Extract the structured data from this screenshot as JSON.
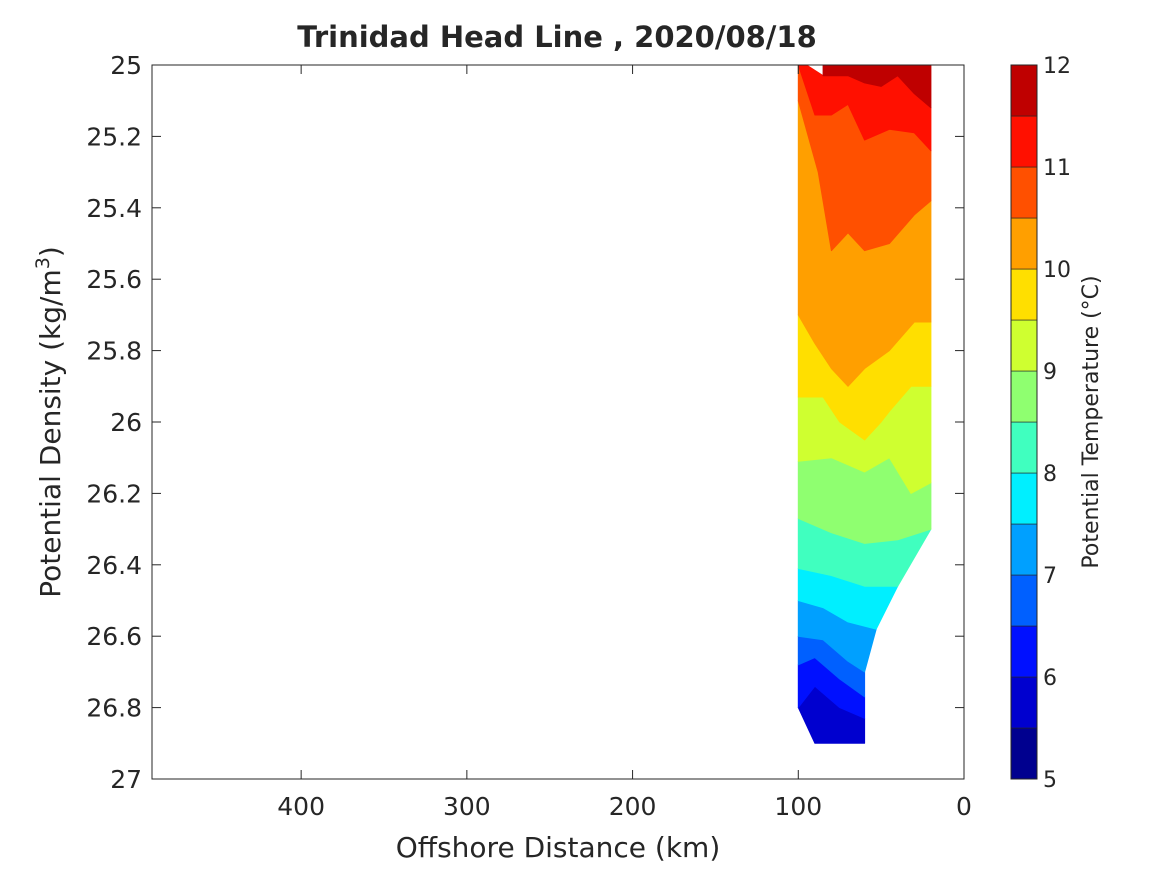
{
  "chart_data": {
    "type": "heatmap",
    "title": "Trinidad Head Line , 2020/08/18",
    "xlabel": "Offshore Distance (km)",
    "ylabel": "Potential Density (kg/m",
    "ylabel_sup": "3",
    "ylabel_end": ")",
    "xlim": [
      490,
      0
    ],
    "ylim": [
      27,
      25
    ],
    "x_ticks": [
      400,
      300,
      200,
      100,
      0
    ],
    "x_tick_labels": [
      "400",
      "300",
      "200",
      "100",
      "0"
    ],
    "y_ticks": [
      25,
      25.2,
      25.4,
      25.6,
      25.8,
      26,
      26.2,
      26.4,
      26.6,
      26.8,
      27
    ],
    "y_tick_labels": [
      "25",
      "25.2",
      "25.4",
      "25.6",
      "25.8",
      "26",
      "26.2",
      "26.4",
      "26.6",
      "26.8",
      "27"
    ],
    "colorbar": {
      "label": "Potential Temperature (°C)",
      "levels": [
        5,
        5.5,
        6,
        6.5,
        7,
        7.5,
        8,
        8.5,
        9,
        9.5,
        10,
        10.5,
        11,
        11.5,
        12
      ],
      "colors": [
        "#00008f",
        "#0000cf",
        "#0010ff",
        "#0060ff",
        "#00a0ff",
        "#00efff",
        "#40ffbf",
        "#8fff70",
        "#cfff30",
        "#ffdf00",
        "#ff9f00",
        "#ff5000",
        "#ff1000",
        "#bf0000"
      ],
      "tick_values": [
        5,
        6,
        7,
        8,
        9,
        10,
        11,
        12
      ],
      "tick_labels": [
        "5",
        "6",
        "7",
        "8",
        "9",
        "10",
        "11",
        "12"
      ]
    },
    "grid": false,
    "legend": "colorbar-right",
    "bands": [
      {
        "lo": 5.5,
        "hi": 6.0,
        "polygon": [
          [
            100,
            26.8
          ],
          [
            90,
            26.9
          ],
          [
            60,
            26.9
          ],
          [
            60,
            26.83
          ],
          [
            75,
            26.8
          ],
          [
            90,
            26.74
          ],
          [
            100,
            26.8
          ]
        ]
      },
      {
        "lo": 6.0,
        "hi": 6.5,
        "polygon": [
          [
            100,
            26.8
          ],
          [
            90,
            26.74
          ],
          [
            75,
            26.8
          ],
          [
            60,
            26.83
          ],
          [
            60,
            26.77
          ],
          [
            75,
            26.72
          ],
          [
            90,
            26.66
          ],
          [
            100,
            26.68
          ]
        ]
      },
      {
        "lo": 6.5,
        "hi": 7.0,
        "polygon": [
          [
            100,
            26.68
          ],
          [
            90,
            26.66
          ],
          [
            75,
            26.72
          ],
          [
            60,
            26.77
          ],
          [
            60,
            26.7
          ],
          [
            70,
            26.67
          ],
          [
            85,
            26.61
          ],
          [
            100,
            26.6
          ]
        ]
      },
      {
        "lo": 7.0,
        "hi": 7.5,
        "polygon": [
          [
            100,
            26.6
          ],
          [
            85,
            26.61
          ],
          [
            70,
            26.67
          ],
          [
            60,
            26.7
          ],
          [
            53,
            26.58
          ],
          [
            70,
            26.56
          ],
          [
            85,
            26.52
          ],
          [
            100,
            26.5
          ]
        ]
      },
      {
        "lo": 7.5,
        "hi": 8.0,
        "polygon": [
          [
            100,
            26.5
          ],
          [
            85,
            26.52
          ],
          [
            70,
            26.56
          ],
          [
            53,
            26.58
          ],
          [
            40,
            26.46
          ],
          [
            60,
            26.46
          ],
          [
            80,
            26.43
          ],
          [
            100,
            26.41
          ]
        ]
      },
      {
        "lo": 8.0,
        "hi": 8.5,
        "polygon": [
          [
            100,
            26.41
          ],
          [
            80,
            26.43
          ],
          [
            60,
            26.46
          ],
          [
            40,
            26.46
          ],
          [
            20,
            26.3
          ],
          [
            40,
            26.33
          ],
          [
            60,
            26.34
          ],
          [
            80,
            26.31
          ],
          [
            100,
            26.27
          ]
        ]
      },
      {
        "lo": 8.5,
        "hi": 9.0,
        "polygon": [
          [
            100,
            26.27
          ],
          [
            80,
            26.31
          ],
          [
            60,
            26.34
          ],
          [
            40,
            26.33
          ],
          [
            20,
            26.3
          ],
          [
            20,
            26.17
          ],
          [
            32,
            26.2
          ],
          [
            45,
            26.1
          ],
          [
            60,
            26.14
          ],
          [
            70,
            26.12
          ],
          [
            80,
            26.1
          ],
          [
            100,
            26.11
          ]
        ]
      },
      {
        "lo": 9.0,
        "hi": 9.5,
        "polygon": [
          [
            100,
            26.11
          ],
          [
            80,
            26.1
          ],
          [
            70,
            26.12
          ],
          [
            60,
            26.14
          ],
          [
            45,
            26.1
          ],
          [
            32,
            26.2
          ],
          [
            20,
            26.17
          ],
          [
            20,
            25.9
          ],
          [
            32,
            25.9
          ],
          [
            45,
            25.97
          ],
          [
            50,
            26.0
          ],
          [
            60,
            26.05
          ],
          [
            75,
            26.0
          ],
          [
            85,
            25.93
          ],
          [
            100,
            25.93
          ]
        ]
      },
      {
        "lo": 9.5,
        "hi": 10.0,
        "polygon": [
          [
            100,
            25.93
          ],
          [
            85,
            25.93
          ],
          [
            75,
            26.0
          ],
          [
            60,
            26.05
          ],
          [
            50,
            26.0
          ],
          [
            45,
            25.97
          ],
          [
            32,
            25.9
          ],
          [
            20,
            25.9
          ],
          [
            20,
            25.72
          ],
          [
            30,
            25.72
          ],
          [
            45,
            25.8
          ],
          [
            60,
            25.85
          ],
          [
            70,
            25.9
          ],
          [
            80,
            25.85
          ],
          [
            90,
            25.78
          ],
          [
            100,
            25.7
          ]
        ]
      },
      {
        "lo": 10.0,
        "hi": 10.5,
        "polygon": [
          [
            100,
            25.7
          ],
          [
            90,
            25.78
          ],
          [
            80,
            25.85
          ],
          [
            70,
            25.9
          ],
          [
            60,
            25.85
          ],
          [
            45,
            25.8
          ],
          [
            30,
            25.72
          ],
          [
            20,
            25.72
          ],
          [
            20,
            25.38
          ],
          [
            30,
            25.42
          ],
          [
            45,
            25.5
          ],
          [
            60,
            25.52
          ],
          [
            70,
            25.47
          ],
          [
            80,
            25.52
          ],
          [
            88,
            25.3
          ],
          [
            100,
            25.1
          ]
        ]
      },
      {
        "lo": 10.5,
        "hi": 11.0,
        "polygon": [
          [
            100,
            25.1
          ],
          [
            88,
            25.3
          ],
          [
            80,
            25.52
          ],
          [
            70,
            25.47
          ],
          [
            60,
            25.52
          ],
          [
            45,
            25.5
          ],
          [
            30,
            25.42
          ],
          [
            20,
            25.38
          ],
          [
            20,
            25.24
          ],
          [
            30,
            25.19
          ],
          [
            45,
            25.18
          ],
          [
            60,
            25.21
          ],
          [
            70,
            25.11
          ],
          [
            80,
            25.14
          ],
          [
            90,
            25.14
          ],
          [
            100,
            25.0
          ]
        ]
      },
      {
        "lo": 11.0,
        "hi": 11.5,
        "polygon": [
          [
            100,
            25.0
          ],
          [
            90,
            25.14
          ],
          [
            80,
            25.14
          ],
          [
            70,
            25.11
          ],
          [
            60,
            25.21
          ],
          [
            45,
            25.18
          ],
          [
            30,
            25.19
          ],
          [
            20,
            25.24
          ],
          [
            20,
            25.12
          ],
          [
            30,
            25.08
          ],
          [
            40,
            25.03
          ],
          [
            50,
            25.06
          ],
          [
            60,
            25.05
          ],
          [
            70,
            25.03
          ],
          [
            80,
            25.03
          ],
          [
            85,
            25.03
          ],
          [
            95,
            25.0
          ]
        ]
      },
      {
        "lo": 11.5,
        "hi": 12.0,
        "polygon": [
          [
            85,
            25.0
          ],
          [
            60,
            25.0
          ],
          [
            30,
            25.0
          ],
          [
            20,
            25.0
          ],
          [
            20,
            25.12
          ],
          [
            30,
            25.08
          ],
          [
            40,
            25.03
          ],
          [
            50,
            25.06
          ],
          [
            60,
            25.05
          ],
          [
            70,
            25.03
          ],
          [
            80,
            25.03
          ],
          [
            85,
            25.03
          ]
        ]
      }
    ]
  }
}
